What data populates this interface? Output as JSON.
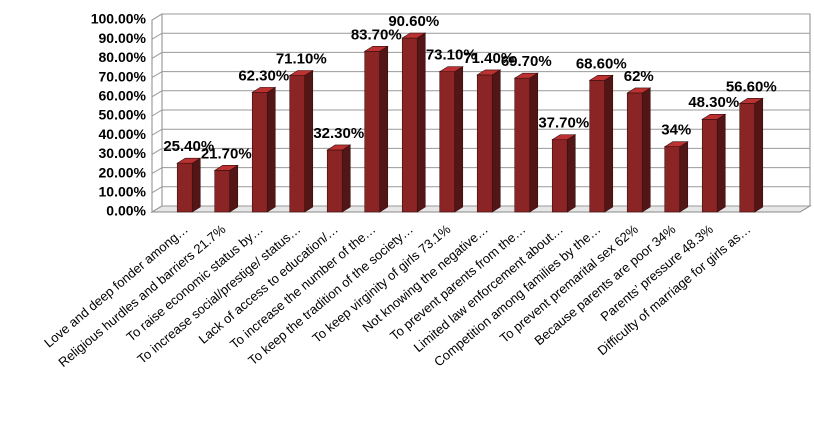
{
  "chart_data": {
    "type": "bar3d",
    "categories": [
      "Love and deep fonder among…",
      "Religious hurdles and barriers 21.7%",
      "To raise economic status by…",
      "To increase social/prestige/ status…",
      "Lack of access to education/…",
      "To increase the number of the…",
      "To keep the tradition of the society…",
      "To keep virginity of girls 73.1%",
      "Not knowing the negative…",
      "To prevent parents from the…",
      "Limited law enforcement about…",
      "Competition among families by the…",
      "To prevent premarital sex 62%",
      "Because parents are poor 34%",
      "Parents’ pressure 48.3%",
      "Difficulty of marriage for girls as…"
    ],
    "values": [
      25.4,
      21.7,
      62.3,
      71.1,
      32.3,
      83.7,
      90.6,
      73.1,
      71.4,
      69.7,
      37.7,
      68.6,
      62,
      34,
      48.3,
      56.6
    ],
    "value_labels": [
      "25.40%",
      "21.70%",
      "62.30%",
      "71.10%",
      "32.30%",
      "83.70%",
      "90.60%",
      "73.10%",
      "71.40%",
      "69.70%",
      "37.70%",
      "68.60%",
      "62%",
      "34%",
      "48.30%",
      "56.60%"
    ],
    "color": "#8b2525",
    "ylim": [
      0,
      100
    ],
    "yticks": [
      {
        "value": 0,
        "label": "0.00%"
      },
      {
        "value": 10,
        "label": "10.00%"
      },
      {
        "value": 20,
        "label": "20.00%"
      },
      {
        "value": 30,
        "label": "30.00%"
      },
      {
        "value": 40,
        "label": "40.00%"
      },
      {
        "value": 50,
        "label": "50.00%"
      },
      {
        "value": 60,
        "label": "60.00%"
      },
      {
        "value": 70,
        "label": "70.00%"
      },
      {
        "value": 80,
        "label": "80.00%"
      },
      {
        "value": 90,
        "label": "90.00%"
      },
      {
        "value": 100,
        "label": "100.00%"
      }
    ],
    "grid": true
  }
}
